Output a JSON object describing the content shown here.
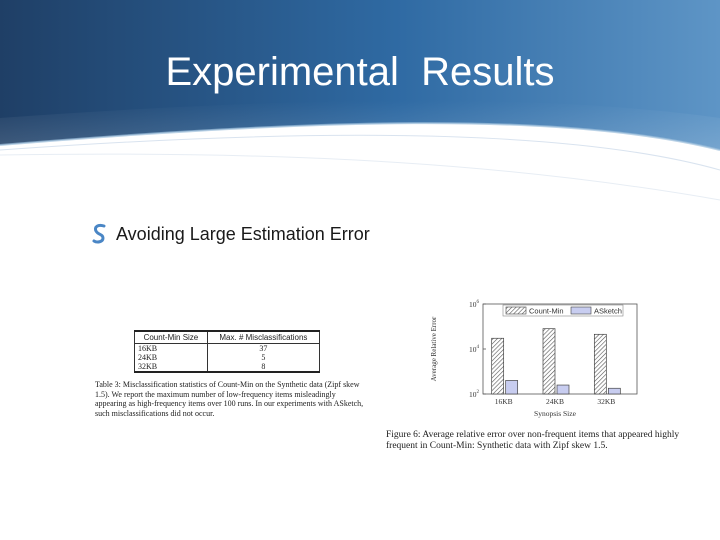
{
  "slide": {
    "title": "Experimental  Results",
    "bullet_icon": "stylized-s-bullet-icon",
    "bullet": "Avoiding Large Estimation Error",
    "colors": {
      "header_dark": "#1f3f66",
      "header_mid": "#2f6aa3",
      "header_light": "#6fa3cf",
      "bullet": "#4a86c5"
    }
  },
  "table": {
    "headers": [
      "Count-Min Size",
      "Max. # Misclassifications"
    ],
    "rows": [
      [
        "16KB",
        "37"
      ],
      [
        "24KB",
        "5"
      ],
      [
        "32KB",
        "8"
      ]
    ],
    "caption": "Table 3: Misclassification statistics of Count-Min on the Synthetic data (Zipf skew 1.5). We report the maximum number of low-frequency items misleadingly appearing as high-frequency items over 100 runs. In our experiments with ASketch, such misclassifications did not occur."
  },
  "figure": {
    "caption": "Figure 6: Average relative error over non-frequent items that appeared highly frequent in Count-Min: Synthetic data with Zipf skew 1.5."
  },
  "chart_data": {
    "type": "bar",
    "categories": [
      "16KB",
      "24KB",
      "32KB"
    ],
    "series": [
      {
        "name": "Count-Min",
        "values": [
          30000,
          80000,
          45000
        ],
        "fill": "hatched"
      },
      {
        "name": "ASketch",
        "values": [
          400,
          250,
          180
        ],
        "fill": "#c8cdf0"
      }
    ],
    "xlabel": "Synopsis Size",
    "ylabel": "Average Relative Error",
    "y_scale": "log",
    "ylim": [
      100,
      1000000
    ],
    "yticks": [
      "10^2",
      "10^4",
      "10^6"
    ],
    "legend": "top"
  }
}
